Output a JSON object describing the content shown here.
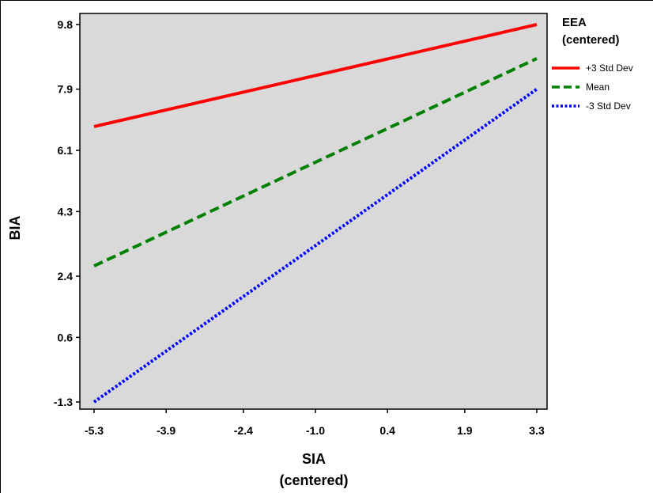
{
  "chart_data": {
    "type": "line",
    "xlabel": "SIA",
    "xlabel_line2": "(centered)",
    "ylabel": "BIA",
    "x_ticks": [
      "-5.3",
      "-3.9",
      "-2.4",
      "-1.0",
      "0.4",
      "1.9",
      "3.3"
    ],
    "y_ticks": [
      "-1.3",
      "0.6",
      "2.4",
      "4.3",
      "6.1",
      "7.9",
      "9.8"
    ],
    "xlim": [
      -5.3,
      3.3
    ],
    "ylim": [
      -1.3,
      9.8
    ],
    "grid": false,
    "legend_position": "right",
    "legend_title": "EEA",
    "legend_title_line2": "(centered)",
    "series": [
      {
        "name": "+3 Std Dev",
        "color": "#ff0000",
        "style": "solid",
        "x": [
          -5.3,
          3.3
        ],
        "y": [
          6.8,
          9.8
        ]
      },
      {
        "name": "Mean",
        "color": "#008000",
        "style": "dashed",
        "x": [
          -5.3,
          3.3
        ],
        "y": [
          2.7,
          8.8
        ]
      },
      {
        "name": "-3 Std Dev",
        "color": "#0000ff",
        "style": "dotted",
        "x": [
          -5.3,
          3.3
        ],
        "y": [
          -1.3,
          7.9
        ]
      }
    ],
    "colors": {
      "plot_background": "#d9d9d9"
    }
  }
}
